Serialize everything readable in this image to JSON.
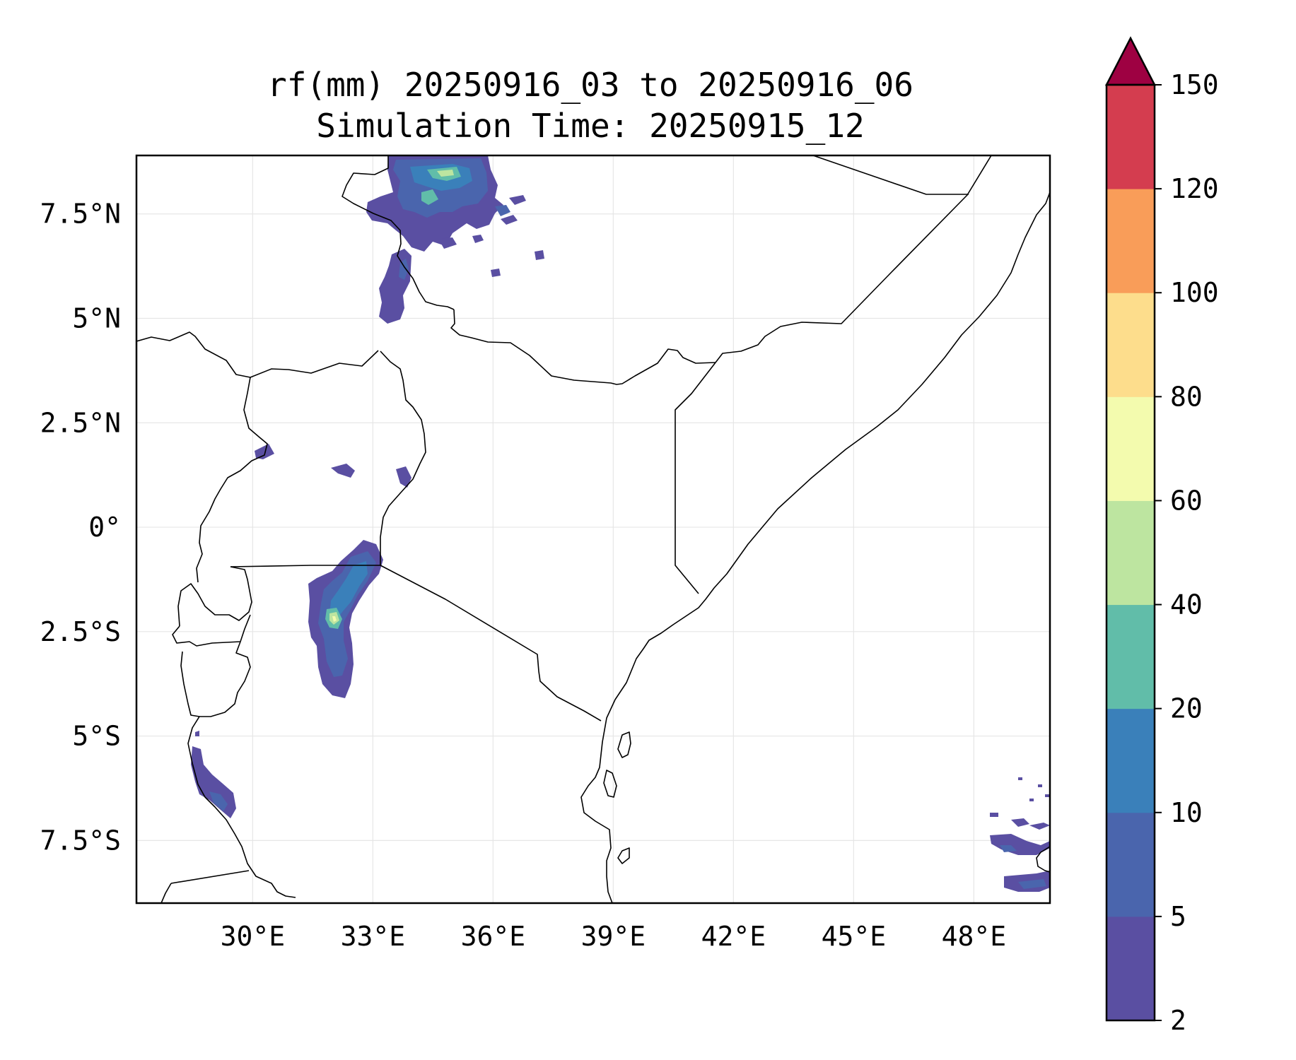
{
  "title": {
    "line1": "rf(mm) 20250916_03 to 20250916_06",
    "line2": "Simulation Time: 20250915_12"
  },
  "map": {
    "lon_range": [
      27.1,
      49.9
    ],
    "lat_range": [
      -9.0,
      8.9
    ],
    "x_ticks": [
      {
        "value": 30,
        "label": "30°E"
      },
      {
        "value": 33,
        "label": "33°E"
      },
      {
        "value": 36,
        "label": "36°E"
      },
      {
        "value": 39,
        "label": "39°E"
      },
      {
        "value": 42,
        "label": "42°E"
      },
      {
        "value": 45,
        "label": "45°E"
      },
      {
        "value": 48,
        "label": "48°E"
      }
    ],
    "y_ticks": [
      {
        "value": 7.5,
        "label": "7.5°N"
      },
      {
        "value": 5,
        "label": "5°N"
      },
      {
        "value": 2.5,
        "label": "2.5°N"
      },
      {
        "value": 0,
        "label": "0°"
      },
      {
        "value": -2.5,
        "label": "2.5°S"
      },
      {
        "value": -5,
        "label": "5°S"
      },
      {
        "value": -7.5,
        "label": "7.5°S"
      }
    ],
    "gridlines": true,
    "colorbar": {
      "levels": [
        "2",
        "5",
        "10",
        "20",
        "40",
        "60",
        "80",
        "100",
        "120",
        "150"
      ],
      "colors": [
        "#5a4fa2",
        "#4a65ad",
        "#3a80ba",
        "#61bda9",
        "#bde5a0",
        "#f3fbae",
        "#fddd8c",
        "#f99d59",
        "#d43d4f"
      ],
      "extend_color": "#9e0142"
    },
    "rain_colors": {
      "c2": "#5a4fa2",
      "c5": "#4a65ad",
      "c10": "#3a80ba",
      "c20": "#61bda9",
      "c40": "#bde5a0",
      "c60": "#f3fbae"
    }
  }
}
